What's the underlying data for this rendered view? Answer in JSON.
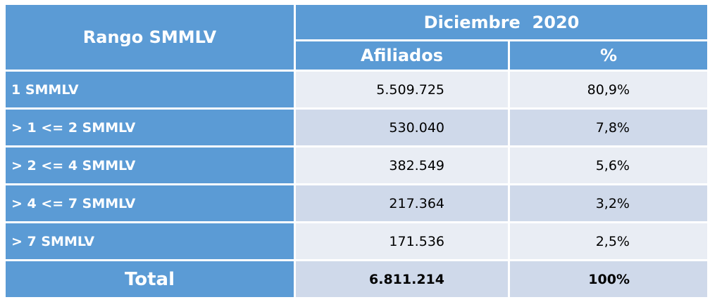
{
  "header": {
    "title": "Rango SMMLV",
    "period": "Diciembre  2020",
    "columns": [
      "Afiliados",
      "%"
    ]
  },
  "rows": [
    [
      "1 SMMLV",
      "5.509.725",
      "80,9%"
    ],
    [
      "> 1 <= 2 SMMLV",
      "530.040",
      "7,8%"
    ],
    [
      "> 2 <= 4 SMMLV",
      "382.549",
      "5,6%"
    ],
    [
      "> 4 <= 7 SMMLV",
      "217.364",
      "3,2%"
    ],
    [
      "> 7 SMMLV",
      "171.536",
      "2,5%"
    ]
  ],
  "total": [
    "Total",
    "6.811.214",
    "100%"
  ]
}
